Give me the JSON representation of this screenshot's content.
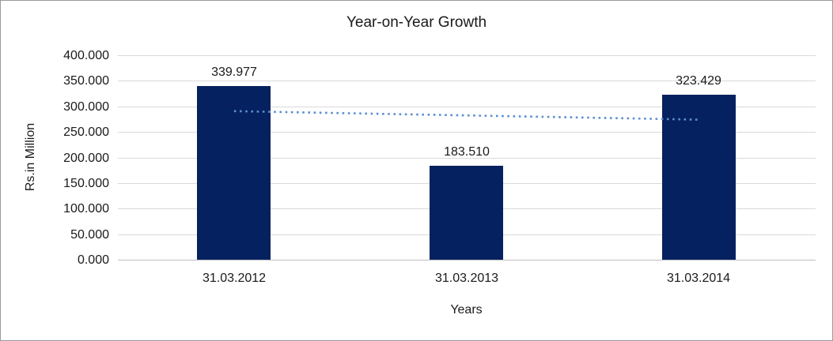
{
  "figure": {
    "background": "#FFFFFF",
    "border_color": "#9A9A9A"
  },
  "chart_data": {
    "type": "bar",
    "title": "Year-on-Year Growth",
    "categories": [
      "31.03.2012",
      "31.03.2013",
      "31.03.2014"
    ],
    "values": [
      339.977,
      183.51,
      323.429
    ],
    "value_labels": [
      "339.977",
      "183.510",
      "323.429"
    ],
    "xlabel": "Years",
    "ylabel": "Rs.in Million",
    "ylim": [
      0,
      400
    ],
    "ytick_step": 50,
    "ytick_labels": [
      "0.000",
      "50.000",
      "100.000",
      "150.000",
      "200.000",
      "250.000",
      "300.000",
      "350.000",
      "400.000"
    ],
    "grid": true,
    "legend": "none",
    "bar_color": "#06215F",
    "gridline_color": "#D9D9D9",
    "axis_line_color": "#BFBFBF",
    "text_color": "#1A1A1A",
    "trendline": {
      "type": "linear",
      "style": "dotted",
      "color": "#5B8FD0"
    }
  }
}
